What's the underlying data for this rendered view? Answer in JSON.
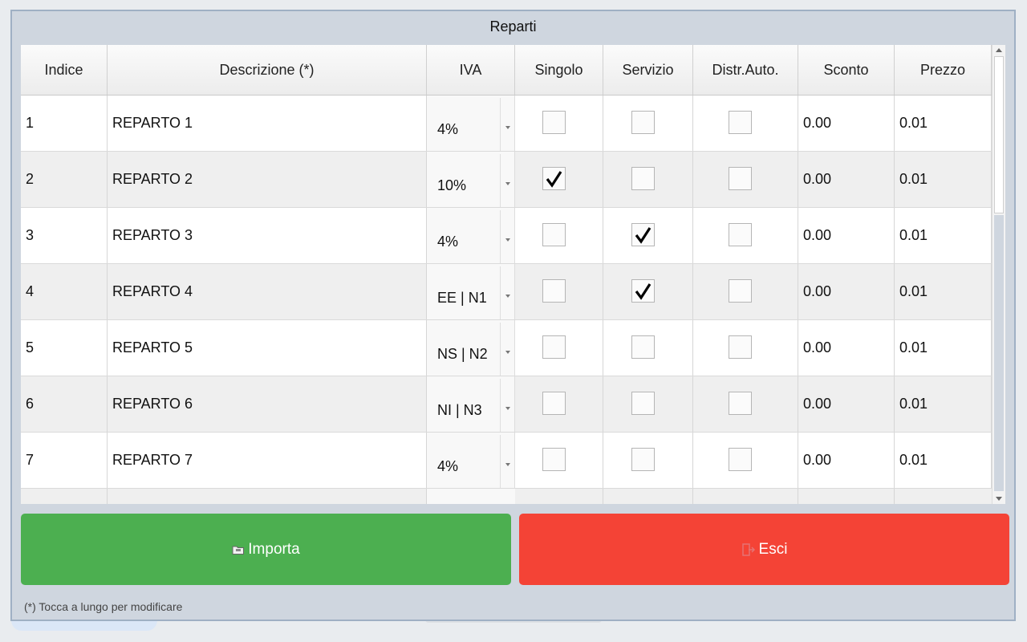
{
  "dialog": {
    "title": "Reparti"
  },
  "columns": [
    "Indice",
    "Descrizione (*)",
    "IVA",
    "Singolo",
    "Servizio",
    "Distr.Auto.",
    "Sconto",
    "Prezzo"
  ],
  "rows": [
    {
      "indice": "1",
      "descrizione": "REPARTO  1",
      "iva": "4%",
      "singolo": false,
      "servizio": false,
      "distr_auto": false,
      "sconto": "0.00",
      "prezzo": "0.01"
    },
    {
      "indice": "2",
      "descrizione": "REPARTO  2",
      "iva": "10%",
      "singolo": true,
      "servizio": false,
      "distr_auto": false,
      "sconto": "0.00",
      "prezzo": "0.01"
    },
    {
      "indice": "3",
      "descrizione": "REPARTO  3",
      "iva": "4%",
      "singolo": false,
      "servizio": true,
      "distr_auto": false,
      "sconto": "0.00",
      "prezzo": "0.01"
    },
    {
      "indice": "4",
      "descrizione": "REPARTO  4",
      "iva": "EE | N1",
      "singolo": false,
      "servizio": true,
      "distr_auto": false,
      "sconto": "0.00",
      "prezzo": "0.01"
    },
    {
      "indice": "5",
      "descrizione": "REPARTO  5",
      "iva": "NS | N2",
      "singolo": false,
      "servizio": false,
      "distr_auto": false,
      "sconto": "0.00",
      "prezzo": "0.01"
    },
    {
      "indice": "6",
      "descrizione": "REPARTO  6",
      "iva": "NI | N3",
      "singolo": false,
      "servizio": false,
      "distr_auto": false,
      "sconto": "0.00",
      "prezzo": "0.01"
    },
    {
      "indice": "7",
      "descrizione": "REPARTO  7",
      "iva": "4%",
      "singolo": false,
      "servizio": false,
      "distr_auto": false,
      "sconto": "0.00",
      "prezzo": "0.01"
    }
  ],
  "buttons": {
    "import_label": "Importa",
    "import_icon": "folder-icon",
    "exit_label": "Esci",
    "exit_icon": "exit-icon",
    "import_color": "#4caf50",
    "exit_color": "#f44336"
  },
  "footer_note": "(*) Tocca a lungo per modificare"
}
